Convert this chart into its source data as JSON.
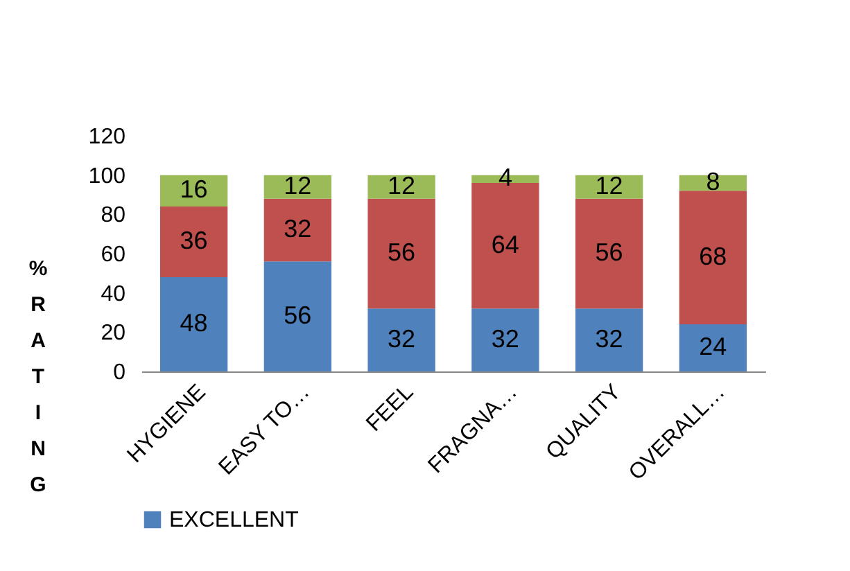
{
  "chart_data": {
    "type": "bar",
    "stacked": true,
    "ylabel": "% RATING",
    "categories": [
      "HYGIENE",
      "EASY TO…",
      "FEEL",
      "FRAGNA…",
      "QUALITY",
      "OVERALL…"
    ],
    "series": [
      {
        "name": "EXCELLENT",
        "color": "#4f81bd",
        "values": [
          48,
          56,
          32,
          32,
          32,
          24
        ]
      },
      {
        "color": "#c0504d",
        "values": [
          36,
          32,
          56,
          64,
          56,
          68
        ]
      },
      {
        "color": "#9bbb59",
        "values": [
          16,
          12,
          12,
          4,
          12,
          8
        ]
      }
    ],
    "ylim": [
      0,
      120
    ],
    "yticks": [
      0,
      20,
      40,
      60,
      80,
      100,
      120
    ],
    "data_labels": true,
    "legend": "bottom",
    "grid": false
  }
}
